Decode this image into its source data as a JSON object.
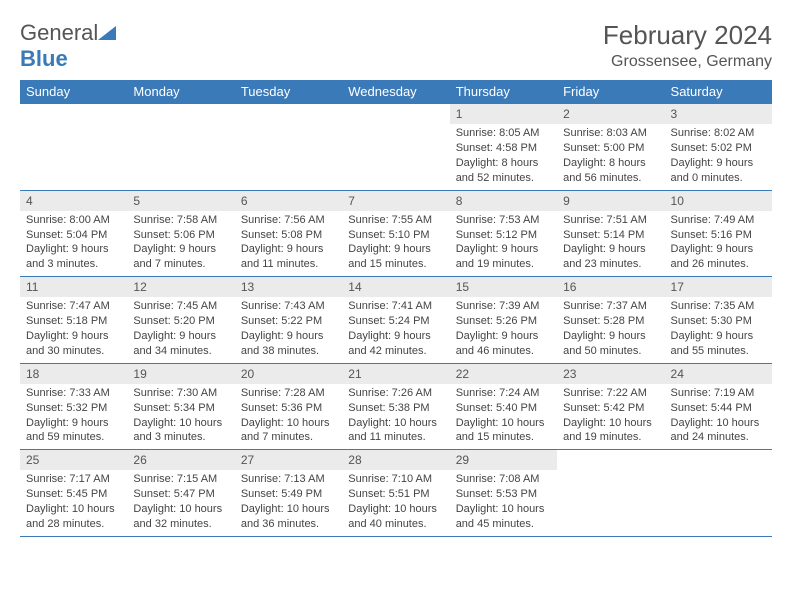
{
  "header": {
    "logo_general": "General",
    "logo_blue": "Blue",
    "month_title": "February 2024",
    "location": "Grossensee, Germany"
  },
  "style": {
    "header_bg": "#3a7ab8",
    "daynum_bg": "#ebebeb",
    "border_color": "#3a7ab8",
    "text_color": "#444444",
    "font_size_cell": 11,
    "font_size_title": 26
  },
  "day_headers": [
    "Sunday",
    "Monday",
    "Tuesday",
    "Wednesday",
    "Thursday",
    "Friday",
    "Saturday"
  ],
  "weeks": [
    [
      {
        "n": "",
        "sr": "",
        "ss": "",
        "dl": ""
      },
      {
        "n": "",
        "sr": "",
        "ss": "",
        "dl": ""
      },
      {
        "n": "",
        "sr": "",
        "ss": "",
        "dl": ""
      },
      {
        "n": "",
        "sr": "",
        "ss": "",
        "dl": ""
      },
      {
        "n": "1",
        "sr": "Sunrise: 8:05 AM",
        "ss": "Sunset: 4:58 PM",
        "dl": "Daylight: 8 hours and 52 minutes."
      },
      {
        "n": "2",
        "sr": "Sunrise: 8:03 AM",
        "ss": "Sunset: 5:00 PM",
        "dl": "Daylight: 8 hours and 56 minutes."
      },
      {
        "n": "3",
        "sr": "Sunrise: 8:02 AM",
        "ss": "Sunset: 5:02 PM",
        "dl": "Daylight: 9 hours and 0 minutes."
      }
    ],
    [
      {
        "n": "4",
        "sr": "Sunrise: 8:00 AM",
        "ss": "Sunset: 5:04 PM",
        "dl": "Daylight: 9 hours and 3 minutes."
      },
      {
        "n": "5",
        "sr": "Sunrise: 7:58 AM",
        "ss": "Sunset: 5:06 PM",
        "dl": "Daylight: 9 hours and 7 minutes."
      },
      {
        "n": "6",
        "sr": "Sunrise: 7:56 AM",
        "ss": "Sunset: 5:08 PM",
        "dl": "Daylight: 9 hours and 11 minutes."
      },
      {
        "n": "7",
        "sr": "Sunrise: 7:55 AM",
        "ss": "Sunset: 5:10 PM",
        "dl": "Daylight: 9 hours and 15 minutes."
      },
      {
        "n": "8",
        "sr": "Sunrise: 7:53 AM",
        "ss": "Sunset: 5:12 PM",
        "dl": "Daylight: 9 hours and 19 minutes."
      },
      {
        "n": "9",
        "sr": "Sunrise: 7:51 AM",
        "ss": "Sunset: 5:14 PM",
        "dl": "Daylight: 9 hours and 23 minutes."
      },
      {
        "n": "10",
        "sr": "Sunrise: 7:49 AM",
        "ss": "Sunset: 5:16 PM",
        "dl": "Daylight: 9 hours and 26 minutes."
      }
    ],
    [
      {
        "n": "11",
        "sr": "Sunrise: 7:47 AM",
        "ss": "Sunset: 5:18 PM",
        "dl": "Daylight: 9 hours and 30 minutes."
      },
      {
        "n": "12",
        "sr": "Sunrise: 7:45 AM",
        "ss": "Sunset: 5:20 PM",
        "dl": "Daylight: 9 hours and 34 minutes."
      },
      {
        "n": "13",
        "sr": "Sunrise: 7:43 AM",
        "ss": "Sunset: 5:22 PM",
        "dl": "Daylight: 9 hours and 38 minutes."
      },
      {
        "n": "14",
        "sr": "Sunrise: 7:41 AM",
        "ss": "Sunset: 5:24 PM",
        "dl": "Daylight: 9 hours and 42 minutes."
      },
      {
        "n": "15",
        "sr": "Sunrise: 7:39 AM",
        "ss": "Sunset: 5:26 PM",
        "dl": "Daylight: 9 hours and 46 minutes."
      },
      {
        "n": "16",
        "sr": "Sunrise: 7:37 AM",
        "ss": "Sunset: 5:28 PM",
        "dl": "Daylight: 9 hours and 50 minutes."
      },
      {
        "n": "17",
        "sr": "Sunrise: 7:35 AM",
        "ss": "Sunset: 5:30 PM",
        "dl": "Daylight: 9 hours and 55 minutes."
      }
    ],
    [
      {
        "n": "18",
        "sr": "Sunrise: 7:33 AM",
        "ss": "Sunset: 5:32 PM",
        "dl": "Daylight: 9 hours and 59 minutes."
      },
      {
        "n": "19",
        "sr": "Sunrise: 7:30 AM",
        "ss": "Sunset: 5:34 PM",
        "dl": "Daylight: 10 hours and 3 minutes."
      },
      {
        "n": "20",
        "sr": "Sunrise: 7:28 AM",
        "ss": "Sunset: 5:36 PM",
        "dl": "Daylight: 10 hours and 7 minutes."
      },
      {
        "n": "21",
        "sr": "Sunrise: 7:26 AM",
        "ss": "Sunset: 5:38 PM",
        "dl": "Daylight: 10 hours and 11 minutes."
      },
      {
        "n": "22",
        "sr": "Sunrise: 7:24 AM",
        "ss": "Sunset: 5:40 PM",
        "dl": "Daylight: 10 hours and 15 minutes."
      },
      {
        "n": "23",
        "sr": "Sunrise: 7:22 AM",
        "ss": "Sunset: 5:42 PM",
        "dl": "Daylight: 10 hours and 19 minutes."
      },
      {
        "n": "24",
        "sr": "Sunrise: 7:19 AM",
        "ss": "Sunset: 5:44 PM",
        "dl": "Daylight: 10 hours and 24 minutes."
      }
    ],
    [
      {
        "n": "25",
        "sr": "Sunrise: 7:17 AM",
        "ss": "Sunset: 5:45 PM",
        "dl": "Daylight: 10 hours and 28 minutes."
      },
      {
        "n": "26",
        "sr": "Sunrise: 7:15 AM",
        "ss": "Sunset: 5:47 PM",
        "dl": "Daylight: 10 hours and 32 minutes."
      },
      {
        "n": "27",
        "sr": "Sunrise: 7:13 AM",
        "ss": "Sunset: 5:49 PM",
        "dl": "Daylight: 10 hours and 36 minutes."
      },
      {
        "n": "28",
        "sr": "Sunrise: 7:10 AM",
        "ss": "Sunset: 5:51 PM",
        "dl": "Daylight: 10 hours and 40 minutes."
      },
      {
        "n": "29",
        "sr": "Sunrise: 7:08 AM",
        "ss": "Sunset: 5:53 PM",
        "dl": "Daylight: 10 hours and 45 minutes."
      },
      {
        "n": "",
        "sr": "",
        "ss": "",
        "dl": ""
      },
      {
        "n": "",
        "sr": "",
        "ss": "",
        "dl": ""
      }
    ]
  ]
}
